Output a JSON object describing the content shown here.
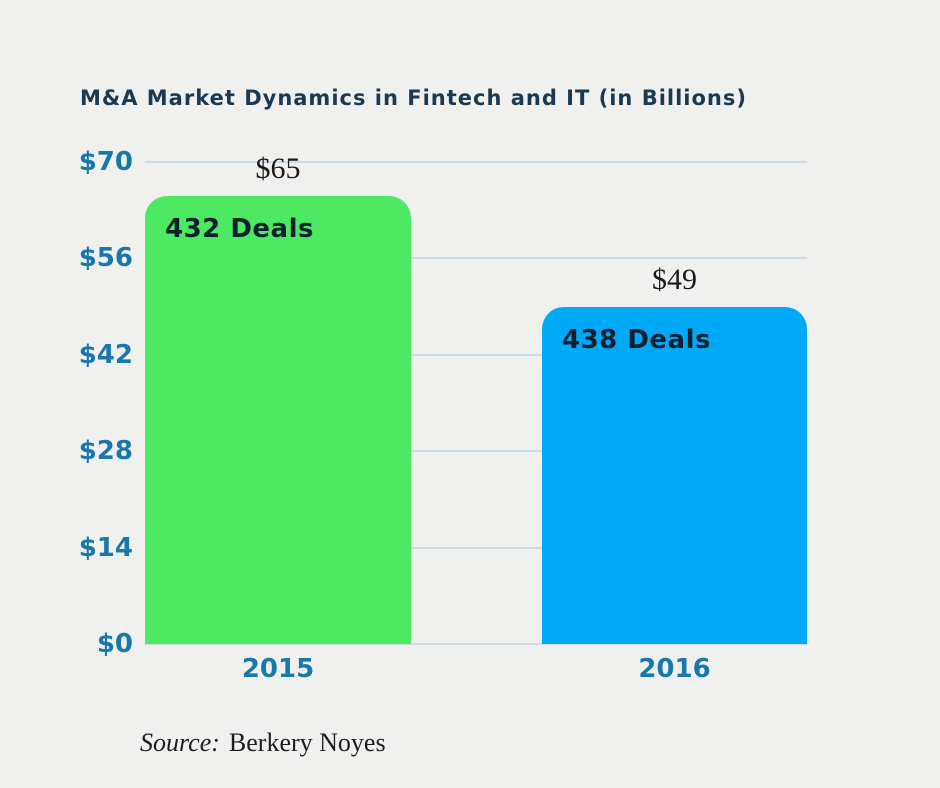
{
  "page": {
    "background_color": "#f0f0ee"
  },
  "chart_data": {
    "type": "bar",
    "title": "M&A Market Dynamics in Fintech and IT (in Billions)",
    "categories": [
      "2015",
      "2016"
    ],
    "values": [
      65,
      49
    ],
    "bars": [
      {
        "category": "2015",
        "value": 65,
        "value_label": "$65",
        "annotation": "432 Deals",
        "color": "#4de963"
      },
      {
        "category": "2016",
        "value": 49,
        "value_label": "$49",
        "annotation": "438 Deals",
        "color": "#00a9f6"
      }
    ],
    "xlabel": "",
    "ylabel": "",
    "ylim": [
      0,
      70
    ],
    "yticks": [
      "$70",
      "$56",
      "$42",
      "$28",
      "$14",
      "$0"
    ],
    "ytick_values": [
      70,
      56,
      42,
      28,
      14,
      0
    ],
    "grid": true,
    "legend": false,
    "colors": {
      "bar_2015": "#4de963",
      "bar_2016": "#00a9f6",
      "axis_labels": "#1878ab",
      "title": "#1b3a52",
      "gridline": "#ccdbe8",
      "annotation_text": "#0e202f",
      "value_label_text": "#1a1a1a"
    },
    "source_prefix": "Source:",
    "source": "Berkery Noyes"
  }
}
